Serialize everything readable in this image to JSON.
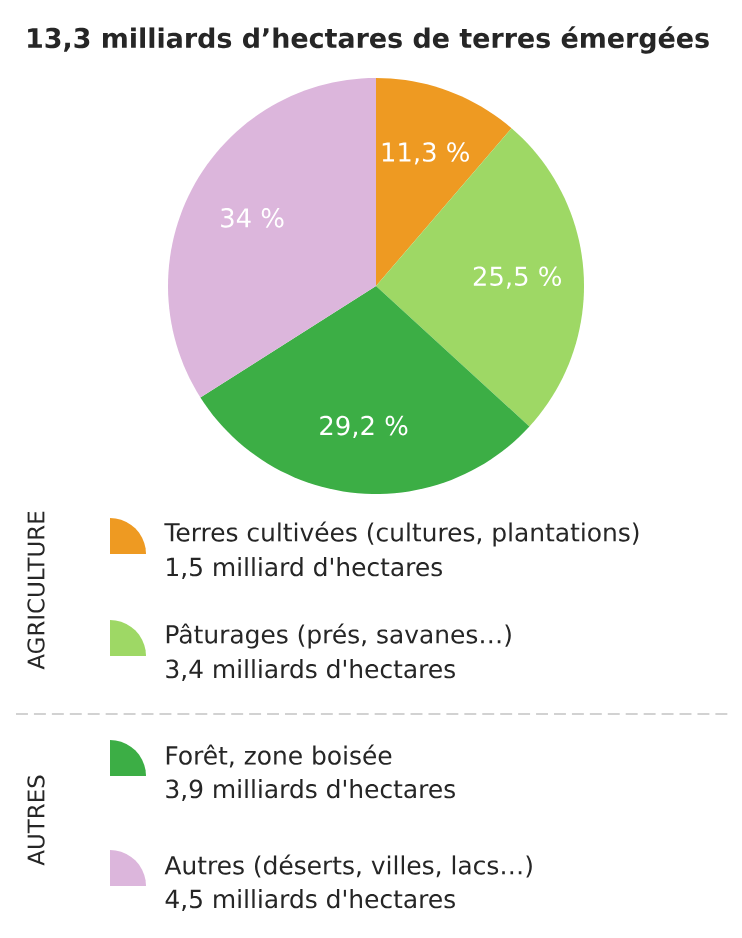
{
  "chart_data": {
    "type": "pie",
    "title": "13,3 milliards d’hectares de terres émergées",
    "categories": [
      "Terres cultivées (cultures, plantations)",
      "Pâturages (prés, savanes…)",
      "Forêt, zone boisée",
      "Autres (déserts, villes, lacs…)"
    ],
    "values": [
      11.3,
      25.5,
      29.2,
      34
    ],
    "value_labels": [
      "11,3 %",
      "25,5 %",
      "29,2 %",
      "34 %"
    ],
    "colors": [
      "#ee9a22",
      "#9ed865",
      "#3cae45",
      "#dcb6dc"
    ],
    "legend": "bottom",
    "annotations": [
      "AGRICULTURE",
      "AUTRES",
      "1,5 milliard d'hectares",
      "3,4 milliards d'hectares",
      "3,9 milliards d'hectares",
      "4,5 milliards d'hectares"
    ]
  }
}
